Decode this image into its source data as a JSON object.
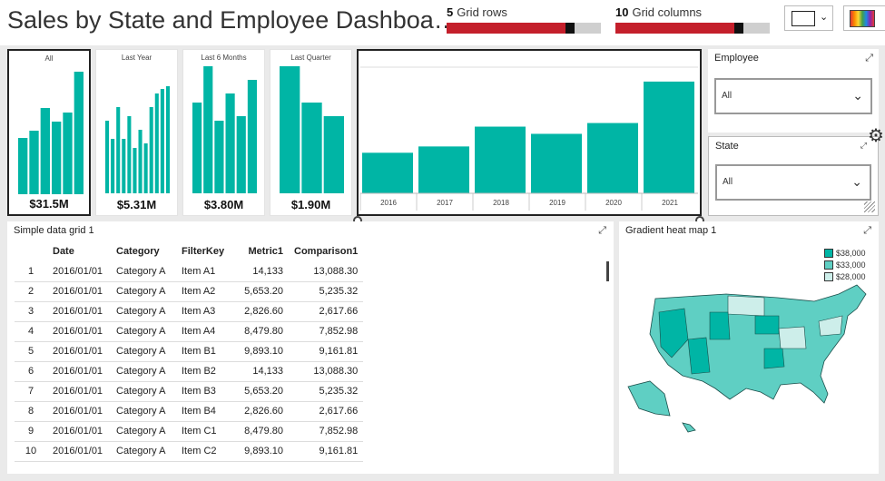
{
  "header": {
    "title": "Sales by State and Employee Dashboa…",
    "rows": {
      "value": "5",
      "label": "Grid rows",
      "level": 0.8
    },
    "cols": {
      "value": "10",
      "label": "Grid columns",
      "level": 0.8
    }
  },
  "colors": {
    "teal": "#00b5a5",
    "red": "#c41f2b",
    "heat_high": "#00b5a5",
    "heat_mid": "#5fcfc3",
    "heat_low": "#cdeeea"
  },
  "tiles": [
    {
      "caption": "All",
      "total": "$31.5M",
      "values": [
        62,
        70,
        95,
        80,
        90,
        135
      ]
    },
    {
      "caption": "Last Year",
      "total": "$5.31M",
      "values": [
        80,
        60,
        95,
        60,
        85,
        50,
        70,
        55,
        95,
        110,
        115,
        118
      ]
    },
    {
      "caption": "Last 6 Months",
      "total": "$3.80M",
      "values": [
        100,
        140,
        80,
        110,
        85,
        125
      ]
    },
    {
      "caption": "Last Quarter",
      "total": "$1.90M",
      "values": [
        140,
        100,
        85
      ]
    }
  ],
  "chart_data": {
    "type": "bar",
    "categories": [
      "2016",
      "2017",
      "2018",
      "2019",
      "2020",
      "2021"
    ],
    "values": [
      45,
      52,
      74,
      66,
      78,
      124
    ],
    "ylim": [
      0,
      140
    ]
  },
  "employee": {
    "title": "Employee",
    "value": "All"
  },
  "state": {
    "title": "State",
    "value": "All"
  },
  "grid": {
    "title": "Simple data grid 1",
    "columns": [
      "",
      "Date",
      "Category",
      "FilterKey",
      "Metric1",
      "Comparison1"
    ],
    "rows": [
      [
        "1",
        "2016/01/01",
        "Category A",
        "Item A1",
        "14,133",
        "13,088.30"
      ],
      [
        "2",
        "2016/01/01",
        "Category A",
        "Item A2",
        "5,653.20",
        "5,235.32"
      ],
      [
        "3",
        "2016/01/01",
        "Category A",
        "Item A3",
        "2,826.60",
        "2,617.66"
      ],
      [
        "4",
        "2016/01/01",
        "Category A",
        "Item A4",
        "8,479.80",
        "7,852.98"
      ],
      [
        "5",
        "2016/01/01",
        "Category A",
        "Item B1",
        "9,893.10",
        "9,161.81"
      ],
      [
        "6",
        "2016/01/01",
        "Category A",
        "Item B2",
        "14,133",
        "13,088.30"
      ],
      [
        "7",
        "2016/01/01",
        "Category A",
        "Item B3",
        "5,653.20",
        "5,235.32"
      ],
      [
        "8",
        "2016/01/01",
        "Category A",
        "Item B4",
        "2,826.60",
        "2,617.66"
      ],
      [
        "9",
        "2016/01/01",
        "Category A",
        "Item C1",
        "8,479.80",
        "7,852.98"
      ],
      [
        "10",
        "2016/01/01",
        "Category A",
        "Item C2",
        "9,893.10",
        "9,161.81"
      ]
    ]
  },
  "heatmap": {
    "title": "Gradient heat map 1",
    "legend": [
      {
        "label": "$38,000",
        "color": "#00b5a5"
      },
      {
        "label": "$33,000",
        "color": "#5fcfc3"
      },
      {
        "label": "$28,000",
        "color": "#cdeeea"
      }
    ]
  }
}
